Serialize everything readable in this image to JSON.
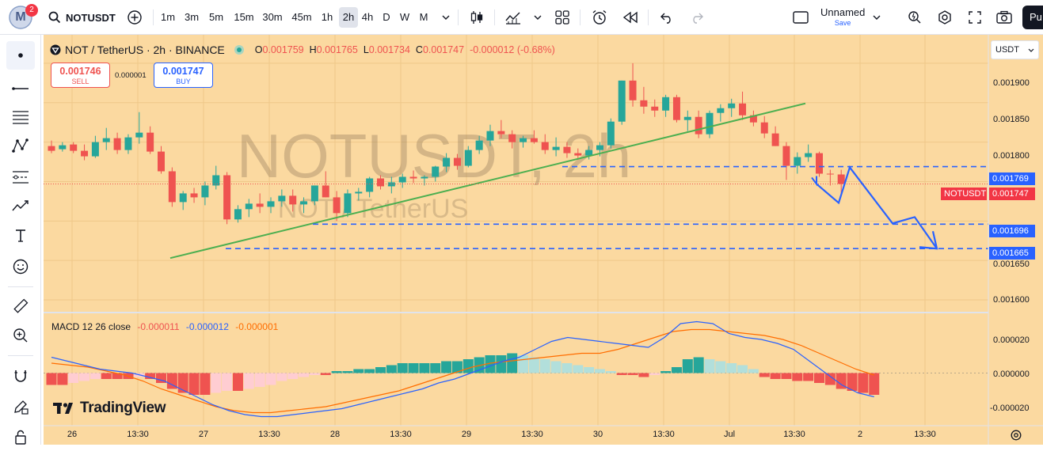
{
  "topbar": {
    "avatar_letter": "M",
    "notif_count": "2",
    "symbol": "NOTUSDT",
    "timeframes": [
      "1m",
      "3m",
      "5m",
      "15m",
      "30m",
      "45m",
      "1h",
      "2h",
      "4h",
      "D",
      "W",
      "M"
    ],
    "active_timeframe": "2h",
    "layout_name": "Unnamed",
    "save_label": "Save",
    "publish_label": "Pu"
  },
  "legend": {
    "title": "NOT / TetherUS · 2h · BINANCE",
    "o_label": "O",
    "o": "0.001759",
    "h_label": "H",
    "h": "0.001765",
    "l_label": "L",
    "l": "0.001734",
    "c_label": "C",
    "c": "0.001747",
    "change": "-0.000012 (-0.68%)",
    "sell_price": "0.001746",
    "sell_label": "SELL",
    "spread": "0.000001",
    "buy_price": "0.001747",
    "buy_label": "BUY"
  },
  "watermark": {
    "symbol": "NOTUSDT, 2h",
    "name": "NOT / TetherUS"
  },
  "macd": {
    "label": "MACD 12 26 close",
    "hist": "-0.000011",
    "macd": "-0.000012",
    "signal": "-0.000001"
  },
  "currency": "USDT",
  "brand": "TradingView",
  "price_axis": [
    "0.001900",
    "0.001850",
    "0.001800",
    "0.001650",
    "0.001600"
  ],
  "price_badges": {
    "level1": "0.001769",
    "last_symbol": "NOTUSDT",
    "last": "0.001747",
    "level2": "0.001696",
    "level3": "0.001665"
  },
  "macd_axis": [
    "0.000020",
    "0.000000",
    "-0.000020"
  ],
  "time_axis": [
    "26",
    "13:30",
    "27",
    "13:30",
    "28",
    "13:30",
    "29",
    "13:30",
    "30",
    "13:30",
    "Jul",
    "13:30",
    "2",
    "13:30"
  ],
  "colors": {
    "bull": "#26a69a",
    "bear": "#ef5350",
    "background": "#fbd9a0",
    "trendline": "#4caf50",
    "dashed": "#2962ff",
    "projection": "#2962ff"
  },
  "chart_data": {
    "type": "candlestick",
    "timeframe": "2h",
    "x_range": [
      "Jun 26",
      "Jul 1"
    ],
    "y_range": [
      0.00159,
      0.00193
    ],
    "candles": [
      [
        0.001795,
        0.001802,
        0.001786,
        0.001789
      ],
      [
        0.001791,
        0.0018,
        0.001788,
        0.001796
      ],
      [
        0.001797,
        0.0018,
        0.001786,
        0.001789
      ],
      [
        0.001789,
        0.001797,
        0.001777,
        0.001782
      ],
      [
        0.001782,
        0.001808,
        0.00178,
        0.0018
      ],
      [
        0.0018,
        0.001818,
        0.00179,
        0.001805
      ],
      [
        0.001805,
        0.001812,
        0.001785,
        0.00179
      ],
      [
        0.00179,
        0.00181,
        0.001785,
        0.001806
      ],
      [
        0.001806,
        0.001838,
        0.001798,
        0.001812
      ],
      [
        0.001812,
        0.00182,
        0.001785,
        0.001788
      ],
      [
        0.001788,
        0.001795,
        0.00176,
        0.001763
      ],
      [
        0.001763,
        0.001768,
        0.001718,
        0.001724
      ],
      [
        0.001724,
        0.001738,
        0.001714,
        0.001735
      ],
      [
        0.001735,
        0.001742,
        0.001723,
        0.00173
      ],
      [
        0.00173,
        0.00175,
        0.00172,
        0.001745
      ],
      [
        0.001745,
        0.00177,
        0.00174,
        0.001758
      ],
      [
        0.001758,
        0.001762,
        0.001696,
        0.001702
      ],
      [
        0.001702,
        0.00172,
        0.001698,
        0.001715
      ],
      [
        0.001715,
        0.001728,
        0.001705,
        0.001722
      ],
      [
        0.001722,
        0.001735,
        0.00171,
        0.001718
      ],
      [
        0.001718,
        0.00173,
        0.00171,
        0.001725
      ],
      [
        0.001725,
        0.00174,
        0.001718,
        0.001732
      ],
      [
        0.001732,
        0.00174,
        0.001712,
        0.001721
      ],
      [
        0.001721,
        0.00173,
        0.00171,
        0.001725
      ],
      [
        0.001725,
        0.001745,
        0.00172,
        0.001745
      ],
      [
        0.001745,
        0.001763,
        0.00173,
        0.00173
      ],
      [
        0.00173,
        0.001738,
        0.0017,
        0.00171
      ],
      [
        0.00171,
        0.00174,
        0.001705,
        0.001735
      ],
      [
        0.001735,
        0.001742,
        0.001726,
        0.001737
      ],
      [
        0.001737,
        0.001756,
        0.00173,
        0.001754
      ],
      [
        0.001754,
        0.001758,
        0.00174,
        0.001744
      ],
      [
        0.001744,
        0.001756,
        0.001735,
        0.001749
      ],
      [
        0.001749,
        0.00176,
        0.001742,
        0.001756
      ],
      [
        0.001756,
        0.001764,
        0.001748,
        0.001754
      ],
      [
        0.001754,
        0.001758,
        0.001745,
        0.001756
      ],
      [
        0.001756,
        0.00177,
        0.00175,
        0.001769
      ],
      [
        0.001769,
        0.001786,
        0.001762,
        0.00178
      ],
      [
        0.00178,
        0.001785,
        0.001765,
        0.00177
      ],
      [
        0.00177,
        0.001795,
        0.001768,
        0.00179
      ],
      [
        0.00179,
        0.001808,
        0.001785,
        0.001802
      ],
      [
        0.001802,
        0.001822,
        0.001795,
        0.001814
      ],
      [
        0.001814,
        0.001828,
        0.001805,
        0.00181
      ],
      [
        0.00181,
        0.001815,
        0.001792,
        0.0018
      ],
      [
        0.0018,
        0.001808,
        0.001793,
        0.001805
      ],
      [
        0.001805,
        0.001815,
        0.001798,
        0.0018
      ],
      [
        0.0018,
        0.00181,
        0.001785,
        0.00179
      ],
      [
        0.00179,
        0.001806,
        0.001782,
        0.001794
      ],
      [
        0.001794,
        0.0018,
        0.00178,
        0.001786
      ],
      [
        0.001786,
        0.001792,
        0.001778,
        0.001783
      ],
      [
        0.001783,
        0.001795,
        0.001778,
        0.00179
      ],
      [
        0.00179,
        0.0018,
        0.001782,
        0.001796
      ],
      [
        0.001796,
        0.00183,
        0.001792,
        0.001826
      ],
      [
        0.001826,
        0.001878,
        0.001822,
        0.001878
      ],
      [
        0.001878,
        0.0019,
        0.001845,
        0.001853
      ],
      [
        0.001853,
        0.00187,
        0.001836,
        0.001845
      ],
      [
        0.001845,
        0.001854,
        0.001832,
        0.00184
      ],
      [
        0.00184,
        0.00186,
        0.001832,
        0.001857
      ],
      [
        0.001857,
        0.00186,
        0.001825,
        0.001828
      ],
      [
        0.001828,
        0.00184,
        0.001814,
        0.001832
      ],
      [
        0.001832,
        0.00184,
        0.001805,
        0.00181
      ],
      [
        0.00181,
        0.00184,
        0.001805,
        0.001837
      ],
      [
        0.001837,
        0.001848,
        0.001826,
        0.001843
      ],
      [
        0.001843,
        0.001855,
        0.001832,
        0.001849
      ],
      [
        0.001849,
        0.001864,
        0.001828,
        0.001834
      ],
      [
        0.001834,
        0.00184,
        0.00182,
        0.001825
      ],
      [
        0.001825,
        0.001833,
        0.001805,
        0.001811
      ],
      [
        0.001811,
        0.00182,
        0.001795,
        0.001795
      ],
      [
        0.001795,
        0.0018,
        0.001752,
        0.00177
      ],
      [
        0.00177,
        0.001787,
        0.00176,
        0.001781
      ],
      [
        0.001781,
        0.001797,
        0.001775,
        0.001786
      ],
      [
        0.001786,
        0.001788,
        0.001756,
        0.00176
      ],
      [
        0.00176,
        0.001765,
        0.001745,
        0.001759
      ],
      [
        0.001759,
        0.001765,
        0.001734,
        0.001747
      ]
    ],
    "trendline": [
      [
        0.001653,
        0
      ],
      [
        0.001849,
        72
      ]
    ],
    "horizontal_levels": [
      0.001769,
      0.001696,
      0.001665
    ],
    "projection": [
      [
        0.001747,
        72
      ],
      [
        0.001723,
        74
      ],
      [
        0.001768,
        76
      ],
      [
        0.001697,
        79
      ],
      [
        0.001705,
        81
      ],
      [
        0.001665,
        83
      ]
    ],
    "macd_y_range": [
      -2.5e-05,
      2.5e-05
    ],
    "macd_hist": [
      -6e-06,
      -6e-06,
      -5e-06,
      -4e-06,
      -3e-06,
      -3e-06,
      -3e-06,
      -3e-06,
      -2e-06,
      -3e-06,
      -5e-06,
      -8e-06,
      -1e-05,
      -1.1e-05,
      -1.1e-05,
      -1e-05,
      -9e-06,
      -9e-06,
      -8e-06,
      -7e-06,
      -6e-06,
      -4e-06,
      -3e-06,
      -2e-06,
      -1e-06,
      -1e-06,
      1e-06,
      1e-06,
      2e-06,
      2e-06,
      3e-06,
      4e-06,
      5e-06,
      5e-06,
      5e-06,
      5e-06,
      6e-06,
      6e-06,
      7e-06,
      8e-06,
      9e-06,
      9e-06,
      1e-05,
      9e-06,
      8e-06,
      7e-06,
      6e-06,
      5e-06,
      4e-06,
      3e-06,
      2e-06,
      1e-06,
      -1e-06,
      -1e-06,
      -2e-06,
      -1e-06,
      1e-06,
      3e-06,
      7e-06,
      8e-06,
      7e-06,
      6e-06,
      5e-06,
      4e-06,
      2e-06,
      -2e-06,
      -3e-06,
      -3e-06,
      -4e-06,
      -4e-06,
      -5e-06,
      -6e-06,
      -8e-06,
      -9e-06,
      -1e-05,
      -1.1e-05
    ],
    "macd_line": [
      8e-06,
      6e-06,
      4e-06,
      2e-06,
      1e-06,
      0.0,
      -2e-06,
      -4e-06,
      -8e-06,
      -1.2e-05,
      -1.6e-05,
      -1.9e-05,
      -2.1e-05,
      -2.2e-05,
      -2.2e-05,
      -2.1e-05,
      -2e-05,
      -1.9e-05,
      -1.8e-05,
      -1.6e-05,
      -1.4e-05,
      -1.2e-05,
      -1e-05,
      -8e-06,
      -5e-06,
      -3e-06,
      0.0,
      3e-06,
      6e-06,
      8e-06,
      1.2e-05,
      1.6e-05,
      1.8e-05,
      1.7e-05,
      1.6e-05,
      1.5e-05,
      1.4e-05,
      1.3e-05,
      1.8e-05,
      2.5e-05,
      2.6e-05,
      2.5e-05,
      2e-05,
      1.8e-05,
      1.7e-05,
      1.5e-05,
      1.2e-05,
      6e-06,
      0.0,
      -6e-06,
      -1e-05,
      -1.2e-05
    ],
    "signal_line": [
      5e-06,
      4e-06,
      3e-06,
      1e-06,
      -1e-06,
      -4e-06,
      -8e-06,
      -1.1e-05,
      -1.4e-05,
      -1.7e-05,
      -1.9e-05,
      -2e-05,
      -2e-05,
      -1.9e-05,
      -1.8e-05,
      -1.7e-05,
      -1.5e-05,
      -1.3e-05,
      -1.1e-05,
      -9e-06,
      -6e-06,
      -3e-06,
      0.0,
      3e-06,
      5e-06,
      6e-06,
      7e-06,
      8e-06,
      9e-06,
      1e-05,
      1e-05,
      1.2e-05,
      1.5e-05,
      1.8e-05,
      2.1e-05,
      2.2e-05,
      2.2e-05,
      2.1e-05,
      2e-05,
      1.9e-05,
      1.7e-05,
      1.4e-05,
      1e-05,
      6e-06,
      2e-06,
      -1e-06
    ]
  }
}
